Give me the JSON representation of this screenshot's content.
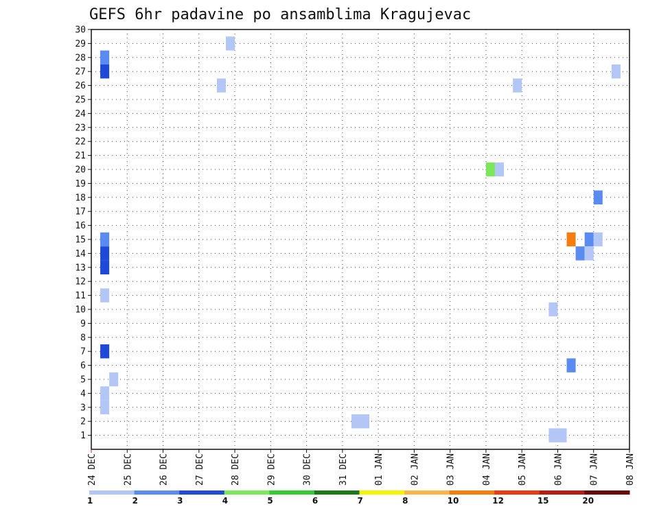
{
  "chart_data": {
    "type": "heatmap",
    "title": "GEFS 6hr padavine po ansamblima Kragujevac",
    "y_ticks": [
      "1",
      "2",
      "3",
      "4",
      "5",
      "6",
      "7",
      "8",
      "9",
      "10",
      "11",
      "12",
      "13",
      "14",
      "15",
      "16",
      "17",
      "18",
      "19",
      "20",
      "21",
      "22",
      "23",
      "24",
      "25",
      "26",
      "27",
      "28",
      "29",
      "30"
    ],
    "ylim": [
      0,
      30
    ],
    "x_ticks": [
      "24 DEC",
      "25 DEC",
      "26 DEC",
      "27 DEC",
      "28 DEC",
      "29 DEC",
      "30 DEC",
      "31 DEC",
      "01 JAN",
      "02 JAN",
      "03 JAN",
      "04 JAN",
      "05 JAN",
      "06 JAN",
      "07 JAN",
      "08 JAN"
    ],
    "xlim": [
      0,
      15
    ],
    "grid": true,
    "colorbar": {
      "labels": [
        "1",
        "2",
        "3",
        "4",
        "5",
        "6",
        "7",
        "8",
        "10",
        "12",
        "15",
        "20"
      ],
      "colors": [
        "#b3c7f7",
        "#5a8bf0",
        "#1f4ad8",
        "#7ae85a",
        "#33cc33",
        "#1a7a1a",
        "#f5f500",
        "#fdb54a",
        "#f57d10",
        "#e83a14",
        "#b51e14",
        "#6b0a0a"
      ]
    },
    "cells": [
      {
        "x": 0.25,
        "y": 28,
        "v": 2.5
      },
      {
        "x": 0.25,
        "y": 27,
        "v": 3.5
      },
      {
        "x": 0.25,
        "y": 15,
        "v": 2.5
      },
      {
        "x": 0.25,
        "y": 14,
        "v": 3.5
      },
      {
        "x": 0.25,
        "y": 13,
        "v": 3.5
      },
      {
        "x": 0.25,
        "y": 11,
        "v": 1.5
      },
      {
        "x": 0.25,
        "y": 7,
        "v": 3.5
      },
      {
        "x": 0.25,
        "y": 4,
        "v": 1.5
      },
      {
        "x": 0.25,
        "y": 3,
        "v": 1.5
      },
      {
        "x": 0.5,
        "y": 5,
        "v": 1.5
      },
      {
        "x": 3.75,
        "y": 29,
        "v": 1.5
      },
      {
        "x": 3.5,
        "y": 26,
        "v": 1.5
      },
      {
        "x": 7.25,
        "y": 2,
        "v": 1.5
      },
      {
        "x": 7.5,
        "y": 2,
        "v": 1.5
      },
      {
        "x": 11.0,
        "y": 20,
        "v": 4.5
      },
      {
        "x": 11.25,
        "y": 20,
        "v": 1.5
      },
      {
        "x": 11.75,
        "y": 26,
        "v": 1.5
      },
      {
        "x": 12.75,
        "y": 10,
        "v": 1.5
      },
      {
        "x": 12.75,
        "y": 1,
        "v": 1.5
      },
      {
        "x": 13.0,
        "y": 1,
        "v": 1.5
      },
      {
        "x": 13.25,
        "y": 6,
        "v": 2.5
      },
      {
        "x": 13.25,
        "y": 15,
        "v": 11
      },
      {
        "x": 13.5,
        "y": 14,
        "v": 2.5
      },
      {
        "x": 13.75,
        "y": 15,
        "v": 2.5
      },
      {
        "x": 13.75,
        "y": 14,
        "v": 1.5
      },
      {
        "x": 14.0,
        "y": 15,
        "v": 1.5
      },
      {
        "x": 14.0,
        "y": 18,
        "v": 2.5
      },
      {
        "x": 14.5,
        "y": 27,
        "v": 1.5
      }
    ]
  }
}
